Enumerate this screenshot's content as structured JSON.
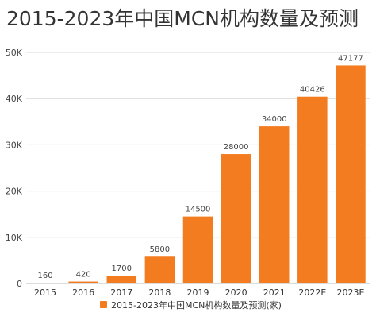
{
  "chart_data": {
    "type": "bar",
    "title": "2015-2023年中国MCN机构数量及预测",
    "categories": [
      "2015",
      "2016",
      "2017",
      "2018",
      "2019",
      "2020",
      "2021",
      "2022E",
      "2023E"
    ],
    "series": [
      {
        "name": "2015-2023年中国MCN机构数量及预测(家)",
        "values": [
          160,
          420,
          1700,
          5800,
          14500,
          28000,
          34000,
          40426,
          47177
        ],
        "color": "#f47c20"
      }
    ],
    "data_labels": [
      "160",
      "420",
      "1700",
      "5800",
      "14500",
      "28000",
      "34000",
      "40426",
      "47177"
    ],
    "ylim": [
      0,
      50000
    ],
    "y_ticks": [
      0,
      10000,
      20000,
      30000,
      40000,
      50000
    ],
    "y_tick_labels": [
      "0",
      "10K",
      "20K",
      "30K",
      "40K",
      "50K"
    ],
    "grid": true,
    "legend": "bottom"
  }
}
